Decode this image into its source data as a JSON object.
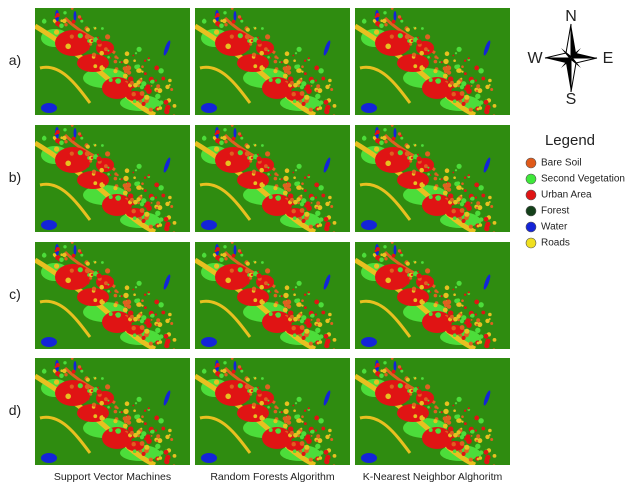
{
  "row_labels": [
    "a)",
    "b)",
    "c)",
    "d)"
  ],
  "column_labels": [
    "Support Vector Machines",
    "Random Forests Algorithm",
    "K-Nearest Neighbor Alghoritm"
  ],
  "compass": {
    "north": "N",
    "south": "S",
    "east": "E",
    "west": "W"
  },
  "legend": {
    "title": "Legend",
    "items": [
      {
        "label": "Bare Soil",
        "color": "#e05a1a"
      },
      {
        "label": "Second Vegetation",
        "color": "#3ee83a"
      },
      {
        "label": "Urban Area",
        "color": "#e01414"
      },
      {
        "label": "Forest",
        "color": "#14401a"
      },
      {
        "label": "Water",
        "color": "#1424d8"
      },
      {
        "label": "Roads",
        "color": "#f0e020"
      }
    ]
  }
}
